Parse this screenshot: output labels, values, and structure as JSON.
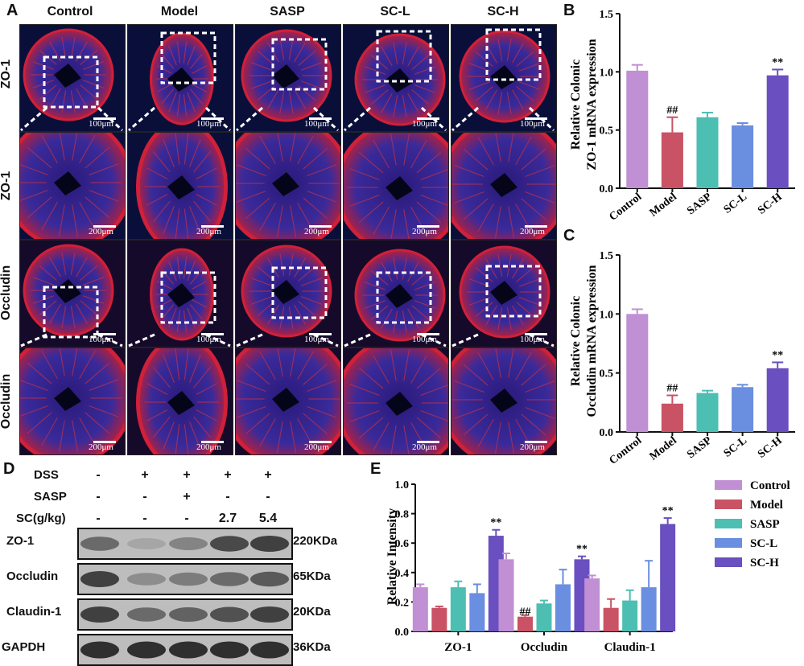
{
  "panels": {
    "a": "A",
    "b": "B",
    "c": "C",
    "d": "D",
    "e": "E"
  },
  "panel_a": {
    "columns": [
      "Control",
      "Model",
      "SASP",
      "SC-L",
      "SC-H"
    ],
    "rows": [
      "ZO-1",
      "ZO-1",
      "Occludin",
      "Occludin"
    ],
    "scale_100": "100μm",
    "scale_200": "200μm"
  },
  "panel_d": {
    "treatments": [
      {
        "label": "DSS",
        "marks": [
          "-",
          "+",
          "+",
          "+",
          "+"
        ]
      },
      {
        "label": "SASP",
        "marks": [
          "-",
          "-",
          "+",
          "-",
          "-"
        ]
      },
      {
        "label": "SC(g/kg)",
        "marks": [
          "-",
          "-",
          "-",
          "2.7",
          "5.4"
        ]
      }
    ],
    "blots": [
      {
        "protein": "ZO-1",
        "kda": "220KDa",
        "bands": [
          0.55,
          0.2,
          0.4,
          0.75,
          0.8
        ]
      },
      {
        "protein": "Occludin",
        "kda": "65KDa",
        "bands": [
          0.8,
          0.35,
          0.45,
          0.55,
          0.65
        ]
      },
      {
        "protein": "Claudin-1",
        "kda": "20KDa",
        "bands": [
          0.8,
          0.55,
          0.6,
          0.7,
          0.8
        ]
      },
      {
        "protein": "GAPDH",
        "kda": "36KDa",
        "bands": [
          0.9,
          0.9,
          0.9,
          0.9,
          0.9
        ]
      }
    ]
  },
  "chart_data": [
    {
      "type": "bar",
      "panel": "B",
      "ylabel_line1": "Relative Colonic",
      "ylabel_line2": "ZO-1 mRNA expression",
      "categories": [
        "Control",
        "Model",
        "SASP",
        "SC-L",
        "SC-H"
      ],
      "values": [
        1.01,
        0.48,
        0.61,
        0.54,
        0.97
      ],
      "errors": [
        0.05,
        0.13,
        0.04,
        0.02,
        0.05
      ],
      "ylim": [
        0,
        1.5
      ],
      "yticks": [
        "0.0",
        "0.5",
        "1.0",
        "1.5"
      ],
      "annotations": [
        "",
        "##",
        "",
        "",
        "**"
      ],
      "colors": [
        "#c18fd3",
        "#c95264",
        "#4dbfb2",
        "#6a8ee0",
        "#6a4fc0"
      ]
    },
    {
      "type": "bar",
      "panel": "C",
      "ylabel_line1": "Relative Colonic",
      "ylabel_line2": "Occludin mRNA expression",
      "categories": [
        "Control",
        "Model",
        "SASP",
        "SC-L",
        "SC-H"
      ],
      "values": [
        1.0,
        0.24,
        0.33,
        0.38,
        0.54
      ],
      "errors": [
        0.04,
        0.07,
        0.02,
        0.02,
        0.05
      ],
      "ylim": [
        0,
        1.5
      ],
      "yticks": [
        "0.0",
        "0.5",
        "1.0",
        "1.5"
      ],
      "annotations": [
        "",
        "##",
        "",
        "",
        "**"
      ],
      "colors": [
        "#c18fd3",
        "#c95264",
        "#4dbfb2",
        "#6a8ee0",
        "#6a4fc0"
      ]
    },
    {
      "type": "bar",
      "panel": "E",
      "ylabel": "Relative Intensity",
      "categories": [
        "ZO-1",
        "Occludin",
        "Claudin-1"
      ],
      "ylim": [
        0,
        1.0
      ],
      "yticks": [
        "0.0",
        "0.2",
        "0.4",
        "0.6",
        "0.8",
        "1.0"
      ],
      "legend_position": "right",
      "series": [
        {
          "name": "Control",
          "color": "#c18fd3",
          "values": [
            0.3,
            0.49,
            0.36
          ],
          "errors": [
            0.02,
            0.04,
            0.02
          ],
          "annotations": [
            "",
            "",
            ""
          ]
        },
        {
          "name": "Model",
          "color": "#c95264",
          "values": [
            0.16,
            0.1,
            0.16
          ],
          "errors": [
            0.01,
            0.01,
            0.06
          ],
          "annotations": [
            "",
            "##",
            ""
          ]
        },
        {
          "name": "SASP",
          "color": "#4dbfb2",
          "values": [
            0.3,
            0.19,
            0.21
          ],
          "errors": [
            0.04,
            0.02,
            0.07
          ],
          "annotations": [
            "",
            "",
            ""
          ]
        },
        {
          "name": "SC-L",
          "color": "#6a8ee0",
          "values": [
            0.26,
            0.32,
            0.3
          ],
          "errors": [
            0.06,
            0.1,
            0.18
          ],
          "annotations": [
            "",
            "",
            ""
          ]
        },
        {
          "name": "SC-H",
          "color": "#6a4fc0",
          "values": [
            0.65,
            0.49,
            0.73
          ],
          "errors": [
            0.04,
            0.02,
            0.04
          ],
          "annotations": [
            "**",
            "**",
            "**"
          ]
        }
      ]
    }
  ]
}
